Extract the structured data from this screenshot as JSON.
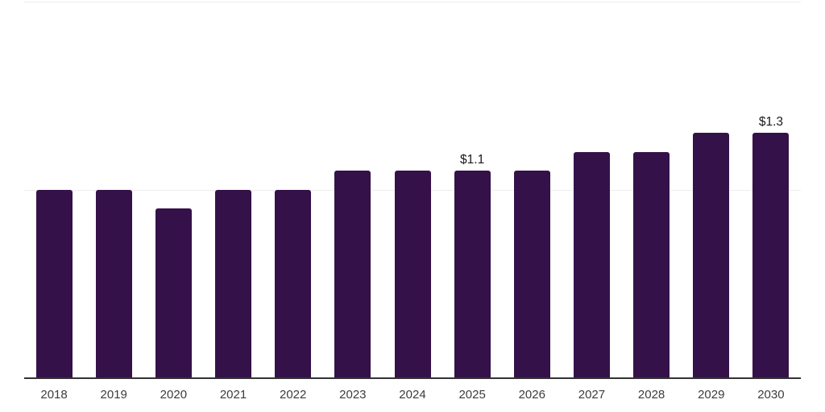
{
  "chart_data": {
    "type": "bar",
    "title": "",
    "xlabel": "",
    "ylabel": "",
    "legend": "none",
    "grid": "horizontal",
    "currency_prefix": "$",
    "categories": [
      "2018",
      "2019",
      "2020",
      "2021",
      "2022",
      "2023",
      "2024",
      "2025",
      "2026",
      "2027",
      "2028",
      "2029",
      "2030"
    ],
    "values": [
      1.0,
      1.0,
      0.9,
      1.0,
      1.0,
      1.1,
      1.1,
      1.1,
      1.1,
      1.2,
      1.2,
      1.3,
      1.3
    ],
    "data_labels": [
      {
        "category": "2025",
        "text": "$1.1"
      },
      {
        "category": "2030",
        "text": "$1.3"
      }
    ],
    "ylim": [
      0,
      2.0
    ],
    "grid_values": [
      1.0,
      2.0
    ]
  },
  "style": {
    "bar_color": "#351149",
    "axis_line_color": "#333333",
    "gridline_color": "#ededed",
    "tick_label_color": "#3c3c3c",
    "data_label_color": "#1a1a1a",
    "background_color": "#ffffff"
  }
}
